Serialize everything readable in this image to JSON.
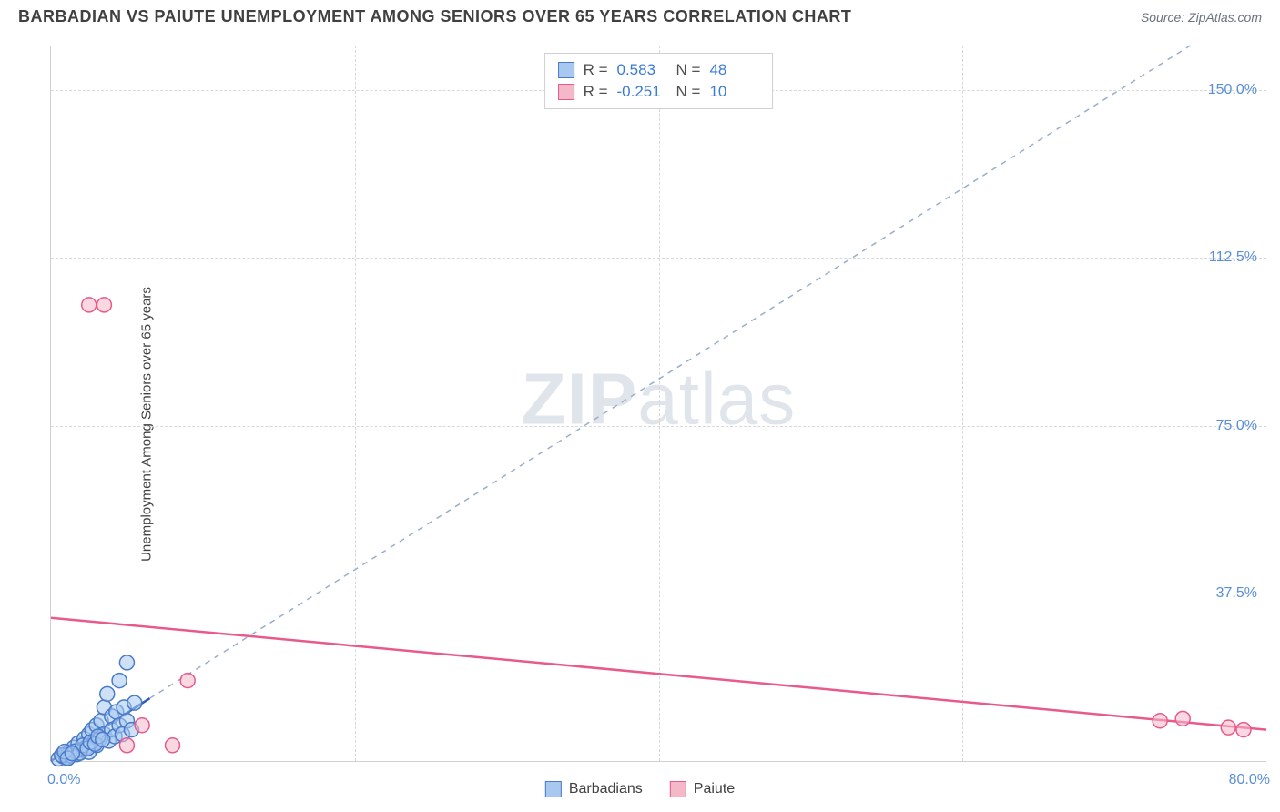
{
  "header": {
    "title": "BARBADIAN VS PAIUTE UNEMPLOYMENT AMONG SENIORS OVER 65 YEARS CORRELATION CHART",
    "source": "Source: ZipAtlas.com"
  },
  "watermark": {
    "part1": "ZIP",
    "part2": "atlas"
  },
  "chart": {
    "type": "scatter",
    "y_axis_label": "Unemployment Among Seniors over 65 years",
    "xlim": [
      0,
      80
    ],
    "ylim": [
      0,
      160
    ],
    "x_ticks": [
      {
        "v": 0,
        "label": "0.0%"
      },
      {
        "v": 80,
        "label": "80.0%"
      }
    ],
    "y_ticks": [
      {
        "v": 37.5,
        "label": "37.5%"
      },
      {
        "v": 75.0,
        "label": "75.0%"
      },
      {
        "v": 112.5,
        "label": "112.5%"
      },
      {
        "v": 150.0,
        "label": "150.0%"
      }
    ],
    "x_gridlines": [
      20,
      40,
      60
    ],
    "y_gridlines": [
      37.5,
      75.0,
      112.5,
      150.0
    ],
    "grid_color": "#d8d8d8",
    "background_color": "#ffffff",
    "axis_color": "#d0d0d0",
    "tick_label_color": "#5a8fd6",
    "tick_fontsize": 16,
    "axis_label_fontsize": 15,
    "axis_label_color": "#404040",
    "marker_radius": 8,
    "marker_stroke_width": 1.5,
    "trend_line_width": 2.5,
    "series": [
      {
        "name": "Barbadians",
        "fill": "#a8c8f0",
        "stroke": "#4a7bc8",
        "fill_opacity": 0.55,
        "R": "0.583",
        "N": "48",
        "trend": {
          "x1": 0,
          "y1": 0,
          "x2": 6.5,
          "y2": 14,
          "color": "#2a5bb8",
          "dash": false
        },
        "trend_ext": {
          "x1": 6.5,
          "y1": 14,
          "x2": 75,
          "y2": 160,
          "color": "#9aaec8",
          "dash": true
        },
        "points": [
          {
            "x": 0.5,
            "y": 0.5
          },
          {
            "x": 0.8,
            "y": 1.0
          },
          {
            "x": 1.0,
            "y": 1.5
          },
          {
            "x": 1.2,
            "y": 2.0
          },
          {
            "x": 1.5,
            "y": 3.0
          },
          {
            "x": 1.7,
            "y": 1.5
          },
          {
            "x": 1.8,
            "y": 4.0
          },
          {
            "x": 2.0,
            "y": 2.5
          },
          {
            "x": 2.2,
            "y": 5.0
          },
          {
            "x": 2.3,
            "y": 3.0
          },
          {
            "x": 2.5,
            "y": 6.0
          },
          {
            "x": 2.5,
            "y": 2.0
          },
          {
            "x": 2.7,
            "y": 7.0
          },
          {
            "x": 2.8,
            "y": 4.0
          },
          {
            "x": 3.0,
            "y": 8.0
          },
          {
            "x": 3.0,
            "y": 3.5
          },
          {
            "x": 3.2,
            "y": 5.0
          },
          {
            "x": 3.3,
            "y": 9.0
          },
          {
            "x": 3.5,
            "y": 12.0
          },
          {
            "x": 3.5,
            "y": 6.0
          },
          {
            "x": 3.7,
            "y": 15.0
          },
          {
            "x": 3.8,
            "y": 4.5
          },
          {
            "x": 4.0,
            "y": 10.0
          },
          {
            "x": 4.0,
            "y": 7.0
          },
          {
            "x": 4.2,
            "y": 5.5
          },
          {
            "x": 4.3,
            "y": 11.0
          },
          {
            "x": 4.5,
            "y": 18.0
          },
          {
            "x": 4.5,
            "y": 8.0
          },
          {
            "x": 4.7,
            "y": 6.0
          },
          {
            "x": 4.8,
            "y": 12.0
          },
          {
            "x": 5.0,
            "y": 22.0
          },
          {
            "x": 5.0,
            "y": 9.0
          },
          {
            "x": 5.3,
            "y": 7.0
          },
          {
            "x": 5.5,
            "y": 13.0
          },
          {
            "x": 1.0,
            "y": 0.8
          },
          {
            "x": 1.3,
            "y": 1.2
          },
          {
            "x": 1.6,
            "y": 2.2
          },
          {
            "x": 1.9,
            "y": 1.8
          },
          {
            "x": 2.1,
            "y": 3.5
          },
          {
            "x": 2.4,
            "y": 2.8
          },
          {
            "x": 0.7,
            "y": 1.3
          },
          {
            "x": 0.9,
            "y": 2.1
          },
          {
            "x": 1.1,
            "y": 0.6
          },
          {
            "x": 1.4,
            "y": 1.7
          },
          {
            "x": 2.6,
            "y": 4.2
          },
          {
            "x": 2.9,
            "y": 3.8
          },
          {
            "x": 3.1,
            "y": 5.5
          },
          {
            "x": 3.4,
            "y": 4.8
          }
        ]
      },
      {
        "name": "Paiute",
        "fill": "#f5b8c8",
        "stroke": "#e85a8a",
        "fill_opacity": 0.55,
        "R": "-0.251",
        "N": "10",
        "trend": {
          "x1": 0,
          "y1": 32,
          "x2": 80,
          "y2": 7,
          "color": "#e85a8a",
          "dash": false
        },
        "points": [
          {
            "x": 2.5,
            "y": 102
          },
          {
            "x": 3.5,
            "y": 102
          },
          {
            "x": 5.0,
            "y": 3.5
          },
          {
            "x": 8.0,
            "y": 3.5
          },
          {
            "x": 6.0,
            "y": 8.0
          },
          {
            "x": 9.0,
            "y": 18.0
          },
          {
            "x": 73.0,
            "y": 9.0
          },
          {
            "x": 74.5,
            "y": 9.5
          },
          {
            "x": 77.5,
            "y": 7.5
          },
          {
            "x": 78.5,
            "y": 7.0
          }
        ]
      }
    ]
  },
  "legend": {
    "items": [
      {
        "label": "Barbadians",
        "fill": "#a8c8f0",
        "stroke": "#4a7bc8"
      },
      {
        "label": "Paiute",
        "fill": "#f5b8c8",
        "stroke": "#e85a8a"
      }
    ]
  }
}
